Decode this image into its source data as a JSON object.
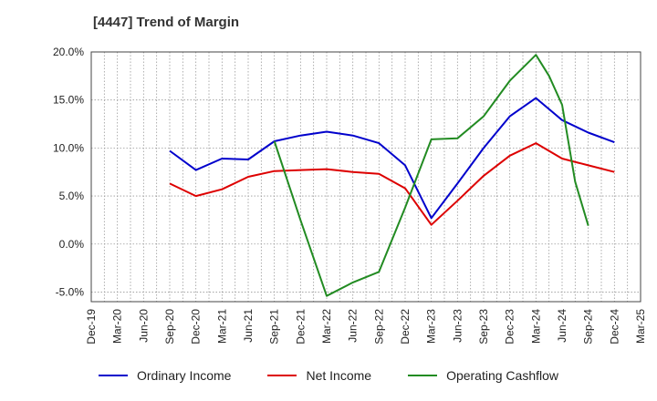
{
  "title": "[4447]  Trend of Margin",
  "chart_data": {
    "type": "line",
    "title": "[4447]  Trend of Margin",
    "xlabel": "",
    "ylabel": "",
    "ylim": [
      -6,
      20
    ],
    "y_ticks": [
      "20.0%",
      "15.0%",
      "10.0%",
      "5.0%",
      "0.0%",
      "-5.0%"
    ],
    "y_tick_values": [
      20,
      15,
      10,
      5,
      0,
      -5
    ],
    "grid": true,
    "legend_position": "bottom",
    "categories": [
      "Dec-19",
      "Mar-20",
      "Jun-20",
      "Sep-20",
      "Dec-20",
      "Mar-21",
      "Jun-21",
      "Sep-21",
      "Dec-21",
      "Mar-22",
      "Jun-22",
      "Sep-22",
      "Dec-22",
      "Mar-23",
      "Jun-23",
      "Sep-23",
      "Dec-23",
      "Mar-24",
      "Jun-24",
      "Sep-24",
      "Dec-24",
      "Mar-25"
    ],
    "series": [
      {
        "name": "Ordinary Income",
        "color": "#0000cc",
        "values": [
          null,
          null,
          null,
          9.7,
          7.7,
          8.9,
          8.8,
          10.7,
          11.3,
          11.7,
          11.3,
          10.5,
          8.2,
          2.7,
          6.3,
          10.0,
          13.3,
          15.2,
          12.9,
          11.6,
          10.6,
          null
        ]
      },
      {
        "name": "Net Income",
        "color": "#dd0000",
        "values": [
          null,
          null,
          null,
          6.3,
          5.0,
          5.7,
          7.0,
          7.6,
          7.7,
          7.8,
          7.5,
          7.3,
          5.8,
          2.0,
          4.5,
          7.1,
          9.2,
          10.5,
          8.9,
          8.2,
          7.5,
          null
        ]
      },
      {
        "name": "Operating Cashflow",
        "color": "#228b22",
        "values": [
          null,
          null,
          null,
          null,
          null,
          null,
          null,
          10.7,
          2.5,
          -5.4,
          -4.0,
          -2.9,
          3.8,
          10.9,
          11.0,
          13.3,
          17.0,
          19.7,
          14.5,
          1.9,
          null,
          null
        ]
      }
    ],
    "series_points": [
      {
        "name": "Operating Cashflow",
        "x_index": [
          17,
          17.5,
          18,
          18.5,
          19
        ],
        "values": [
          19.7,
          17.5,
          14.5,
          6.5,
          1.9
        ]
      }
    ]
  }
}
